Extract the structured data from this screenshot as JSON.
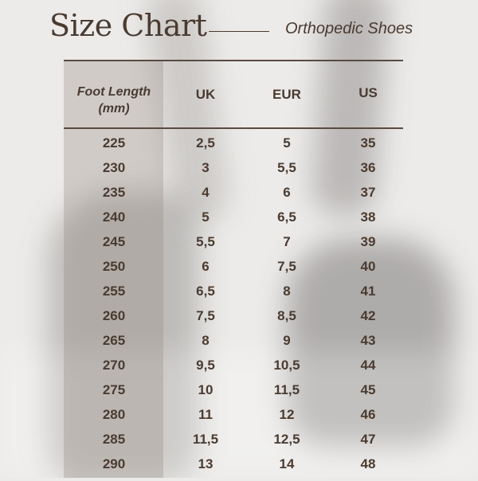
{
  "title": "Size Chart",
  "subtitle": "Orthopedic Shoes",
  "colors": {
    "text": "#4a3b31",
    "background": "#ecebe9"
  },
  "table": {
    "headers": [
      "Foot Length (mm)",
      "UK",
      "EUR",
      "US"
    ],
    "rows": [
      [
        "225",
        "2,5",
        "5",
        "35"
      ],
      [
        "230",
        "3",
        "5,5",
        "36"
      ],
      [
        "235",
        "4",
        "6",
        "37"
      ],
      [
        "240",
        "5",
        "6,5",
        "38"
      ],
      [
        "245",
        "5,5",
        "7",
        "39"
      ],
      [
        "250",
        "6",
        "7,5",
        "40"
      ],
      [
        "255",
        "6,5",
        "8",
        "41"
      ],
      [
        "260",
        "7,5",
        "8,5",
        "42"
      ],
      [
        "265",
        "8",
        "9",
        "43"
      ],
      [
        "270",
        "9,5",
        "10,5",
        "44"
      ],
      [
        "275",
        "10",
        "11,5",
        "45"
      ],
      [
        "280",
        "11",
        "12",
        "46"
      ],
      [
        "285",
        "11,5",
        "12,5",
        "47"
      ],
      [
        "290",
        "13",
        "14",
        "48"
      ]
    ]
  }
}
